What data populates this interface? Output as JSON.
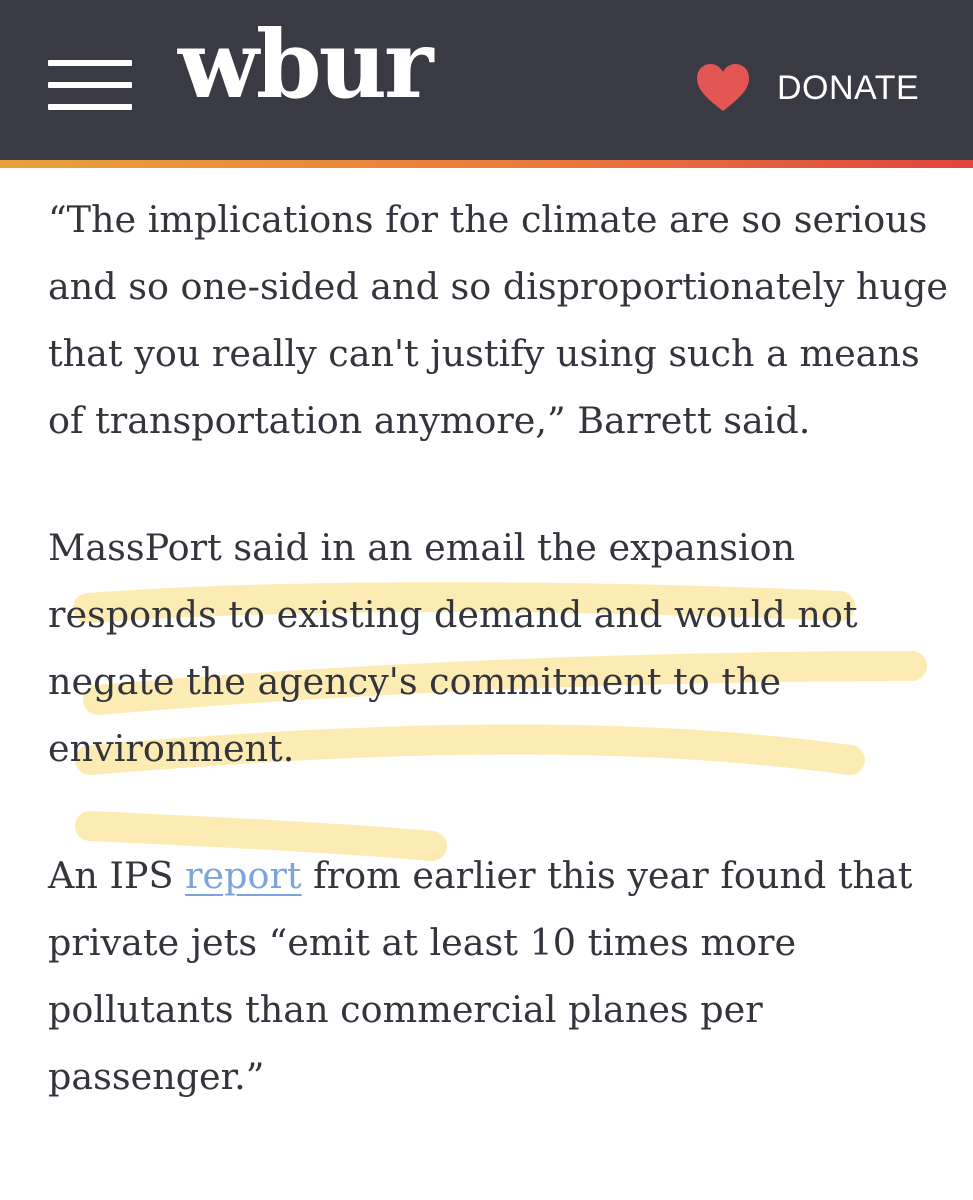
{
  "header": {
    "menu_icon": "hamburger-menu-icon",
    "logo_text": "wbur",
    "donate_icon": "heart-icon",
    "donate_label": "DONATE",
    "colors": {
      "background": "#3a3a44",
      "heart": "#e35654",
      "accent_gradient": [
        "#e8a13a",
        "#ea7a3c",
        "#e0453c"
      ]
    }
  },
  "article": {
    "paragraph_1": "“The implications for the climate are so serious and so one-sided and so disproportionately huge that you really can't justify using such a means of transportation anymore,” Barrett said.",
    "paragraph_2": "MassPort said in an email the expansion responds to existing demand and would not negate the agency's commitment to the environment.",
    "paragraph_3": {
      "before_link": "An IPS ",
      "link_text": "report",
      "after_link": " from earlier this year found that private jets “emit at least 10 times more pollutants than commercial planes per passenger.”"
    },
    "colors": {
      "text": "#34343d",
      "link": "#7da3dc",
      "highlighter": "#fbe9a6"
    }
  }
}
